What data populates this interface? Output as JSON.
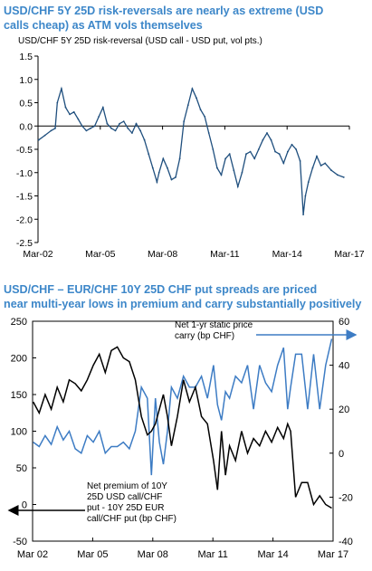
{
  "chart1": {
    "title_line1": "USD/CHF 5Y 25D risk-reversals are nearly as extreme (USD",
    "title_line2": "calls cheap) as ATM vols themselves",
    "subtitle": "USD/CHF  5Y 25D  risk-reversal (USD  call - USD  put, vol pts.)"
  },
  "chart2": {
    "title_line1": "USD/CHF – EUR/CHF 10Y 25D CHF put spreads are priced",
    "title_line2": "near multi-year lows in premium and carry substantially positively",
    "note_right": [
      "Net 1-yr  static price",
      "carry (bp CHF)"
    ],
    "note_left": [
      "Net premium of 10Y",
      "25D  USD  call/CHF",
      "put - 10Y 25D EUR",
      "call/CHF put (bp CHF)"
    ]
  },
  "colors": {
    "title": "#3d87c9",
    "blue_series": "#3d7cc4",
    "black_series": "#000000",
    "dark_series": "#1f4f7e"
  },
  "chart_data": [
    {
      "type": "line",
      "title": "USD/CHF 5Y 25D risk-reversals are nearly as extreme (USD calls cheap) as ATM vols themselves",
      "subtitle": "USD/CHF  5Y 25D  risk-reversal (USD  call - USD  put, vol pts.)",
      "x_tick_labels": [
        "Mar-02",
        "Mar-05",
        "Mar-08",
        "Mar-11",
        "Mar-14",
        "Mar-17"
      ],
      "y_tick_labels": [
        "1.5",
        "1.0",
        "0.5",
        "0.0",
        "-0.5",
        "-1.0",
        "-1.5",
        "-2.0",
        "-2.5"
      ],
      "ylim": [
        -2.5,
        1.5
      ],
      "xlim": [
        2002.17,
        2017.17
      ],
      "series": [
        {
          "x": [
            2002.2,
            2002.5,
            2002.8,
            2003.0,
            2003.1,
            2003.3,
            2003.5,
            2003.7,
            2003.9,
            2004.1,
            2004.3,
            2004.5,
            2004.7,
            2004.9,
            2005.1,
            2005.3,
            2005.5,
            2005.7,
            2005.9,
            2006.1,
            2006.3,
            2006.5,
            2006.7,
            2006.9,
            2007.1,
            2007.3,
            2007.5,
            2007.7,
            2007.9,
            2008.0,
            2008.2,
            2008.4,
            2008.6,
            2008.8,
            2009.0,
            2009.2,
            2009.4,
            2009.6,
            2009.8,
            2010.0,
            2010.2,
            2010.4,
            2010.6,
            2010.8,
            2011.0,
            2011.2,
            2011.4,
            2011.6,
            2011.8,
            2012.0,
            2012.2,
            2012.4,
            2012.6,
            2012.8,
            2013.0,
            2013.2,
            2013.4,
            2013.6,
            2013.8,
            2014.0,
            2014.2,
            2014.4,
            2014.6,
            2014.8,
            2014.95,
            2015.05,
            2015.2,
            2015.4,
            2015.6,
            2015.8,
            2016.0,
            2016.3,
            2016.6,
            2016.9
          ],
          "y": [
            -0.3,
            -0.2,
            -0.1,
            -0.05,
            0.5,
            0.8,
            0.4,
            0.25,
            0.3,
            0.15,
            0.0,
            -0.1,
            -0.05,
            0.0,
            0.2,
            0.4,
            0.05,
            -0.05,
            -0.1,
            0.05,
            0.1,
            -0.05,
            -0.15,
            0.05,
            -0.1,
            -0.3,
            -0.6,
            -0.9,
            -1.2,
            -1.0,
            -0.7,
            -0.9,
            -1.15,
            -1.1,
            -0.7,
            0.1,
            0.45,
            0.8,
            0.6,
            0.35,
            0.2,
            -0.15,
            -0.5,
            -0.9,
            -1.05,
            -0.7,
            -0.6,
            -0.95,
            -1.3,
            -1.0,
            -0.6,
            -0.55,
            -0.7,
            -0.5,
            -0.3,
            -0.15,
            -0.3,
            -0.55,
            -0.6,
            -0.8,
            -0.55,
            -0.4,
            -0.5,
            -0.75,
            -1.9,
            -1.5,
            -1.2,
            -0.9,
            -0.65,
            -0.85,
            -0.8,
            -0.95,
            -1.05,
            -1.1
          ]
        }
      ]
    },
    {
      "type": "line",
      "title": "USD/CHF – EUR/CHF 10Y 25D CHF put spreads are priced near multi-year lows in premium and carry substantially positively",
      "x_tick_labels": [
        "Mar 02",
        "Mar 05",
        "Mar 08",
        "Mar 11",
        "Mar 14",
        "Mar 17"
      ],
      "xlim": [
        2002.17,
        2017.17
      ],
      "y_left_tick_labels": [
        "250",
        "200",
        "150",
        "100",
        "50",
        "0",
        "-50"
      ],
      "y_right_tick_labels": [
        "60",
        "40",
        "20",
        "0",
        "-20",
        "-40"
      ],
      "ylim_left": [
        -50,
        250
      ],
      "ylim_right": [
        -40,
        60
      ],
      "series": [
        {
          "name": "Net premium of 10Y 25D USD call/CHF put - 10Y 25D EUR call/CHF put (bp CHF)",
          "axis": "left",
          "x": [
            2002.2,
            2002.5,
            2002.8,
            2003.1,
            2003.4,
            2003.7,
            2004.0,
            2004.3,
            2004.6,
            2004.9,
            2005.2,
            2005.5,
            2005.8,
            2006.1,
            2006.4,
            2006.7,
            2007.0,
            2007.3,
            2007.6,
            2007.9,
            2008.1,
            2008.3,
            2008.5,
            2008.7,
            2008.9,
            2009.1,
            2009.4,
            2009.7,
            2010.0,
            2010.3,
            2010.6,
            2010.9,
            2011.2,
            2011.4,
            2011.6,
            2011.8,
            2012.0,
            2012.3,
            2012.6,
            2012.9,
            2013.2,
            2013.5,
            2013.8,
            2014.1,
            2014.4,
            2014.7,
            2014.9,
            2015.05,
            2015.3,
            2015.6,
            2015.9,
            2016.2,
            2016.5,
            2016.8,
            2017.1
          ],
          "y": [
            140,
            125,
            150,
            130,
            160,
            140,
            170,
            165,
            155,
            170,
            190,
            205,
            180,
            210,
            215,
            200,
            195,
            170,
            120,
            95,
            100,
            110,
            130,
            150,
            120,
            80,
            120,
            170,
            140,
            160,
            120,
            110,
            60,
            20,
            100,
            40,
            80,
            60,
            100,
            70,
            90,
            80,
            100,
            85,
            105,
            90,
            110,
            100,
            10,
            30,
            30,
            0,
            12,
            0,
            -5
          ]
        },
        {
          "name": "Net 1-yr  static price carry (bp CHF)",
          "axis": "right",
          "x": [
            2002.2,
            2002.5,
            2002.8,
            2003.1,
            2003.4,
            2003.7,
            2004.0,
            2004.3,
            2004.6,
            2004.9,
            2005.2,
            2005.5,
            2005.8,
            2006.1,
            2006.4,
            2006.7,
            2007.0,
            2007.3,
            2007.6,
            2007.9,
            2008.1,
            2008.3,
            2008.5,
            2008.7,
            2008.9,
            2009.1,
            2009.4,
            2009.7,
            2010.0,
            2010.3,
            2010.6,
            2010.9,
            2011.2,
            2011.4,
            2011.6,
            2011.8,
            2012.0,
            2012.3,
            2012.6,
            2012.9,
            2013.2,
            2013.5,
            2013.8,
            2014.1,
            2014.4,
            2014.7,
            2014.9,
            2015.05,
            2015.3,
            2015.6,
            2015.9,
            2016.2,
            2016.5,
            2016.8,
            2017.1
          ],
          "y": [
            5,
            3,
            8,
            4,
            12,
            6,
            10,
            2,
            0,
            8,
            5,
            10,
            0,
            3,
            3,
            5,
            2,
            10,
            30,
            25,
            -10,
            25,
            5,
            -5,
            10,
            30,
            25,
            35,
            30,
            30,
            35,
            25,
            40,
            22,
            15,
            28,
            25,
            35,
            32,
            40,
            20,
            40,
            32,
            28,
            40,
            48,
            20,
            30,
            45,
            45,
            20,
            45,
            20,
            40,
            52
          ]
        }
      ]
    }
  ]
}
